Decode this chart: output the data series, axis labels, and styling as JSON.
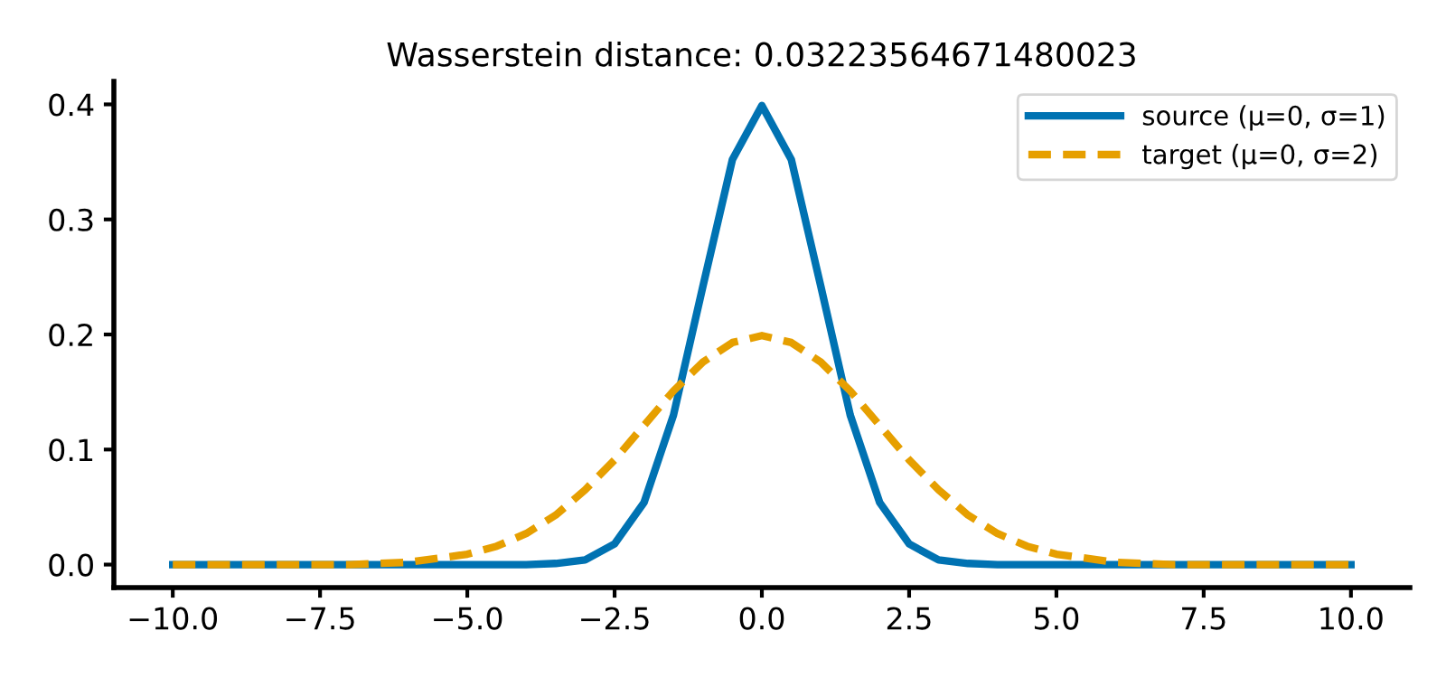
{
  "chart_data": {
    "type": "line",
    "title": "Wasserstein distance: 0.03223564671480023",
    "series": [
      {
        "name": "source (μ=0, σ=1)",
        "color": "#0072b2",
        "line_style": "solid",
        "x": [
          -10,
          -5,
          -4,
          -3.5,
          -3,
          -2.5,
          -2,
          -1.5,
          -1,
          -0.5,
          0,
          0.5,
          1,
          1.5,
          2,
          2.5,
          3,
          3.5,
          4,
          5,
          10
        ],
        "values": [
          0,
          0,
          0,
          0.001,
          0.004,
          0.018,
          0.054,
          0.13,
          0.242,
          0.352,
          0.399,
          0.352,
          0.242,
          0.13,
          0.054,
          0.018,
          0.004,
          0.001,
          0,
          0,
          0
        ]
      },
      {
        "name": "target (μ=0, σ=2)",
        "color": "#e69f00",
        "line_style": "dashed",
        "x": [
          -10,
          -8,
          -7,
          -6,
          -5,
          -4.5,
          -4,
          -3.5,
          -3,
          -2.5,
          -2,
          -1.5,
          -1,
          -0.5,
          0,
          0.5,
          1,
          1.5,
          2,
          2.5,
          3,
          3.5,
          4,
          4.5,
          5,
          6,
          7,
          8,
          10
        ],
        "values": [
          0,
          0,
          0,
          0.002,
          0.009,
          0.016,
          0.027,
          0.043,
          0.065,
          0.091,
          0.121,
          0.151,
          0.176,
          0.193,
          0.199,
          0.193,
          0.176,
          0.151,
          0.121,
          0.091,
          0.065,
          0.043,
          0.027,
          0.016,
          0.009,
          0.002,
          0,
          0,
          0
        ]
      }
    ],
    "xlim": [
      -11,
      11
    ],
    "xticks": [
      {
        "value": -10,
        "label": "−10.0"
      },
      {
        "value": -7.5,
        "label": "−7.5"
      },
      {
        "value": -5,
        "label": "−5.0"
      },
      {
        "value": -2.5,
        "label": "−2.5"
      },
      {
        "value": 0,
        "label": "0.0"
      },
      {
        "value": 2.5,
        "label": "2.5"
      },
      {
        "value": 5,
        "label": "5.0"
      },
      {
        "value": 7.5,
        "label": "7.5"
      },
      {
        "value": 10,
        "label": "10.0"
      }
    ],
    "ylim": [
      -0.02,
      0.42
    ],
    "yticks": [
      {
        "value": 0,
        "label": "0.0"
      },
      0.1,
      0.2,
      0.3,
      0.4
    ],
    "legend": "top right",
    "grid": false
  }
}
